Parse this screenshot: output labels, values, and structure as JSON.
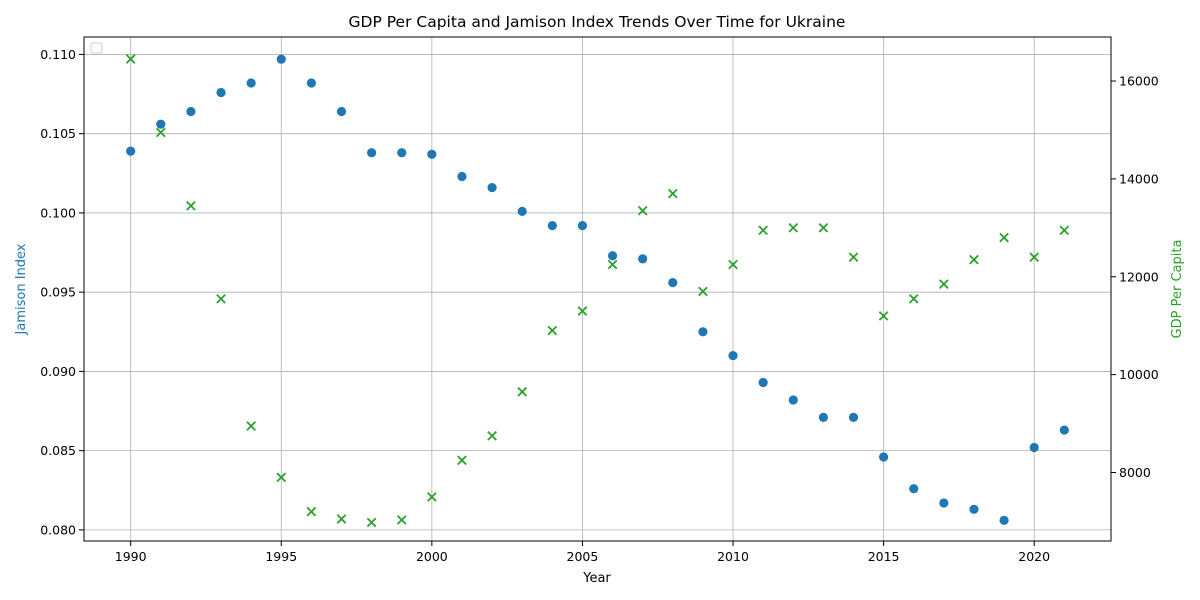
{
  "colors": {
    "series_left": "#1f77b4",
    "series_right": "#2ca02c",
    "grid": "#b0b0b0",
    "axis": "#000000"
  },
  "chart_data": {
    "type": "scatter",
    "title": "GDP Per Capita and Jamison Index Trends Over Time for Ukraine",
    "xlabel": "Year",
    "ylabel_left": "Jamison Index",
    "ylabel_right": "GDP Per Capita",
    "xlim": [
      1988.45,
      2022.55
    ],
    "ylim_left": [
      0.0793,
      0.1111
    ],
    "ylim_right": [
      6600,
      16900
    ],
    "x_ticks": [
      1990,
      1995,
      2000,
      2005,
      2010,
      2015,
      2020
    ],
    "y_ticks_left": [
      "0.080",
      "0.085",
      "0.090",
      "0.095",
      "0.100",
      "0.105",
      "0.110"
    ],
    "y_ticks_right": [
      8000,
      10000,
      12000,
      14000,
      16000
    ],
    "grid": true,
    "legend": "top-left, empty",
    "x": [
      1990,
      1991,
      1992,
      1993,
      1994,
      1995,
      1996,
      1997,
      1998,
      1999,
      2000,
      2001,
      2002,
      2003,
      2004,
      2005,
      2006,
      2007,
      2008,
      2009,
      2010,
      2011,
      2012,
      2013,
      2014,
      2015,
      2016,
      2017,
      2018,
      2019,
      2020,
      2021
    ],
    "series": [
      {
        "name": "Jamison Index",
        "axis": "left",
        "marker": "circle",
        "values": [
          0.1039,
          0.1056,
          0.1064,
          0.1076,
          0.1082,
          0.1097,
          0.1082,
          0.1064,
          0.1038,
          0.1038,
          0.1037,
          0.1023,
          0.1016,
          0.1001,
          0.0992,
          0.0992,
          0.0973,
          0.0971,
          0.0956,
          0.0925,
          0.091,
          0.0893,
          0.0882,
          0.0871,
          0.0871,
          0.0846,
          0.0826,
          0.0817,
          0.0813,
          0.0806,
          0.0852,
          0.0863
        ]
      },
      {
        "name": "GDP Per Capita",
        "axis": "right",
        "marker": "x",
        "values": [
          16450,
          14950,
          13450,
          11550,
          8950,
          7900,
          7200,
          7050,
          6980,
          7030,
          7500,
          8250,
          8750,
          9650,
          10900,
          11300,
          12250,
          13350,
          13700,
          11700,
          12250,
          12950,
          13000,
          13000,
          12400,
          11200,
          11550,
          11850,
          12350,
          12800,
          12400,
          12950
        ]
      }
    ]
  }
}
